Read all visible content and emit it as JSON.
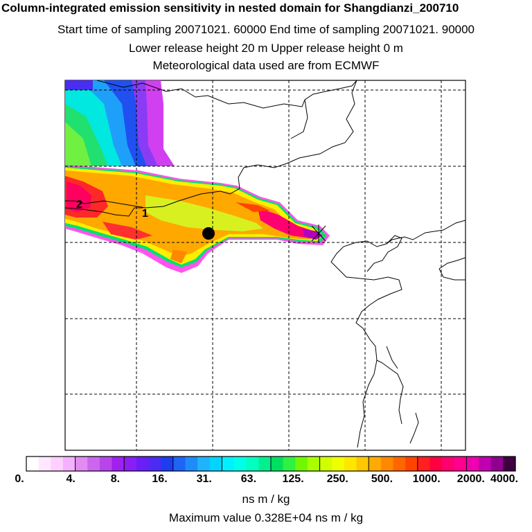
{
  "header": {
    "title": "Column-integrated emission sensitivity in nested domain for Shangdianzi_200710",
    "sampling": "Start time of sampling 20071021. 60000     End time of sampling 20071021. 90000",
    "release": "Lower release height   20 m          Upper release height    0 m",
    "meteo": "Meteorological data used are from ECMWF"
  },
  "map": {
    "label_2": "2",
    "label_1": "1"
  },
  "colorbar": {
    "colors": [
      "#ffffff",
      "#ffe8ff",
      "#ffd0ff",
      "#f5b0ff",
      "#e08cf2",
      "#cc66ee",
      "#b844ea",
      "#a020f0",
      "#8a1ef5",
      "#6a1ef8",
      "#4a2cf2",
      "#1e3cf0",
      "#1e64f5",
      "#1e8cf8",
      "#1eb4fa",
      "#00d4ff",
      "#00f0ff",
      "#00ffe8",
      "#00ffc0",
      "#00f090",
      "#00e060",
      "#30f040",
      "#70f800",
      "#a8ff00",
      "#d0ff00",
      "#f0ff00",
      "#ffe600",
      "#ffc800",
      "#ffaa00",
      "#ff8800",
      "#ff6600",
      "#ff4400",
      "#ff2020",
      "#ff0040",
      "#ff0070",
      "#ff0090",
      "#f000b0",
      "#c000b0",
      "#900090",
      "#400040"
    ],
    "tick_labels": [
      "0.",
      "4.",
      "8.",
      "16.",
      "31.",
      "63.",
      "125.",
      "250.",
      "500.",
      "1000.",
      "2000.",
      "4000."
    ],
    "units": "ns m / kg",
    "max_value": "Maximum value  0.328E+04 ns m / kg"
  }
}
